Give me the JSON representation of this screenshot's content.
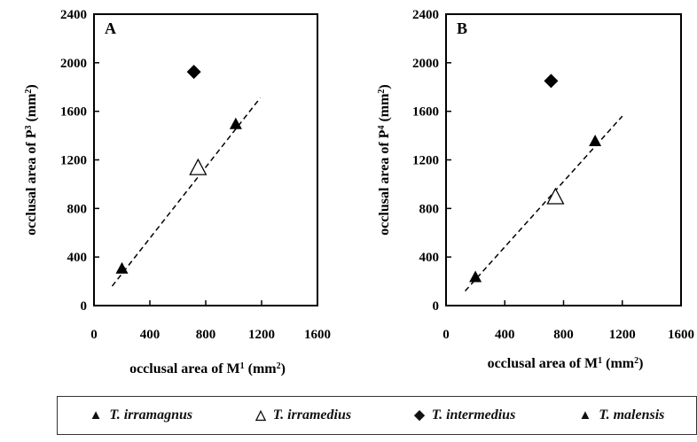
{
  "chart_data": [
    {
      "panel": "A",
      "type": "scatter",
      "xlabel": {
        "pre": "occlusal area of M",
        "sup": "1",
        "post": " (mm",
        "sup2": "2",
        "end": ")"
      },
      "ylabel": {
        "pre": "occlusal area of P",
        "sup": "3",
        "post": " (mm",
        "sup2": "2",
        "end": ")"
      },
      "xlim": [
        0,
        1600
      ],
      "ylim": [
        0,
        2400
      ],
      "xticks": [
        "0",
        "400",
        "800",
        "1200",
        "1600"
      ],
      "yticks": [
        "0",
        "400",
        "800",
        "1200",
        "1600",
        "2000",
        "2400"
      ],
      "grid": false,
      "series": [
        {
          "name": "T. irramagnus",
          "marker": "filled-triangle",
          "points": [
            {
              "x": 200,
              "y": 300
            }
          ]
        },
        {
          "name": "T. irramedius",
          "marker": "open-triangle",
          "points": [
            {
              "x": 745,
              "y": 1130
            }
          ]
        },
        {
          "name": "T.  intermedius",
          "marker": "filled-diamond",
          "points": [
            {
              "x": 715,
              "y": 1925
            }
          ]
        },
        {
          "name": "T. malensis",
          "marker": "filled-triangle",
          "points": [
            {
              "x": 1015,
              "y": 1490
            }
          ]
        }
      ],
      "trendline": {
        "style": "dashed",
        "from": {
          "x": 130,
          "y": 160
        },
        "to": {
          "x": 1190,
          "y": 1710
        }
      }
    },
    {
      "panel": "B",
      "type": "scatter",
      "xlabel": {
        "pre": "occlusal area of M",
        "sup": "1",
        "post": " (mm",
        "sup2": "2",
        "end": ")"
      },
      "ylabel": {
        "pre": "occlusal area of P",
        "sup": "4",
        "post": " (mm",
        "sup2": "2",
        "end": ")"
      },
      "xlim": [
        0,
        1600
      ],
      "ylim": [
        0,
        2400
      ],
      "xticks": [
        "0",
        "400",
        "800",
        "1200",
        "1600"
      ],
      "yticks": [
        "0",
        "400",
        "800",
        "1200",
        "1600",
        "2000",
        "2400"
      ],
      "grid": false,
      "series": [
        {
          "name": "T. irramagnus",
          "marker": "filled-triangle",
          "points": [
            {
              "x": 200,
              "y": 230
            }
          ]
        },
        {
          "name": "T. irramedius",
          "marker": "open-triangle",
          "points": [
            {
              "x": 745,
              "y": 890
            }
          ]
        },
        {
          "name": "T.  intermedius",
          "marker": "filled-diamond",
          "points": [
            {
              "x": 715,
              "y": 1850
            }
          ]
        },
        {
          "name": "T. malensis",
          "marker": "filled-triangle",
          "points": [
            {
              "x": 1015,
              "y": 1350
            }
          ]
        }
      ],
      "trendline": {
        "style": "dashed",
        "from": {
          "x": 130,
          "y": 120
        },
        "to": {
          "x": 1200,
          "y": 1560
        }
      }
    }
  ],
  "legend": {
    "placement": "bottom",
    "items": [
      {
        "symbol": "▲",
        "label": "T. irramagnus"
      },
      {
        "symbol": "△",
        "label": "T. irramedius"
      },
      {
        "symbol": "◆",
        "label": "T.  intermedius"
      },
      {
        "symbol": "▲",
        "label": "T. malensis"
      }
    ]
  }
}
